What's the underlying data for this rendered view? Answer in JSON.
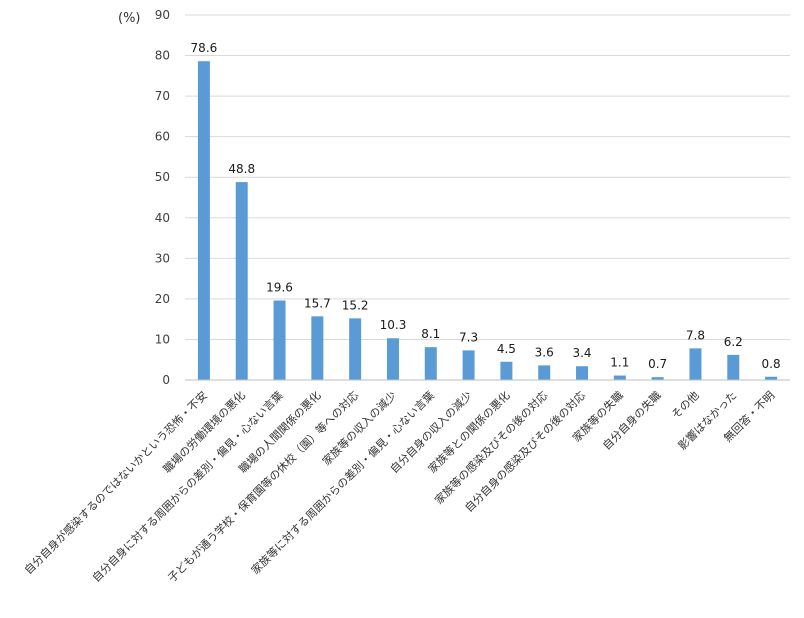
{
  "chart_data": {
    "type": "bar",
    "unit_label": "(%)",
    "title": "",
    "xlabel": "",
    "ylabel": "",
    "ylim": [
      0,
      90
    ],
    "yticks": [
      0,
      10,
      20,
      30,
      40,
      50,
      60,
      70,
      80,
      90
    ],
    "grid": true,
    "legend": "none",
    "bar_color": "#5B9BD5",
    "categories": [
      "自分自身が感染するのではないかという恐怖・不安",
      "職場の労働環境の悪化",
      "自分自身に対する周囲からの差別・偏見・心ない言葉",
      "職場の人間関係の悪化",
      "子どもが通う学校・保育園等の休校（園）等への対応",
      "家族等の収入の減少",
      "家族等に対する周囲からの差別・偏見・心ない言葉",
      "自分自身の収入の減少",
      "家族等との関係の悪化",
      "家族等の感染及びその後の対応",
      "自分自身の感染及びその後の対応",
      "家族等の失職",
      "自分自身の失職",
      "その他",
      "影響はなかった",
      "無回答・不明"
    ],
    "values": [
      78.6,
      48.8,
      19.6,
      15.7,
      15.2,
      10.3,
      8.1,
      7.3,
      4.5,
      3.6,
      3.4,
      1.1,
      0.7,
      7.8,
      6.2,
      0.8
    ],
    "value_labels": [
      "78.6",
      "48.8",
      "19.6",
      "15.7",
      "15.2",
      "10.3",
      "8.1",
      "7.3",
      "4.5",
      "3.6",
      "3.4",
      "1.1",
      "0.7",
      "7.8",
      "6.2",
      "0.8"
    ]
  }
}
